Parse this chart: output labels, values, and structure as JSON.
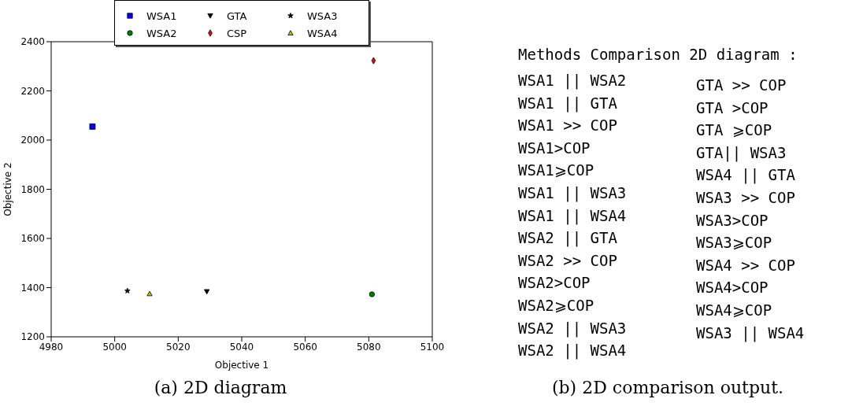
{
  "chart_data": [
    {
      "type": "scatter",
      "xlabel": "Objective 1",
      "ylabel": "Objective 2",
      "xlim": [
        4980,
        5100
      ],
      "xticks": [
        4980,
        5000,
        5020,
        5040,
        5060,
        5080,
        5100
      ],
      "ylim": [
        1200,
        2400
      ],
      "yticks": [
        1200,
        1400,
        1600,
        1800,
        2000,
        2200,
        2400
      ],
      "legend": "top",
      "series": [
        {
          "name": "WSA1",
          "color": "#0000ff",
          "marker": "square",
          "x": [
            4993
          ],
          "values": [
            2055
          ]
        },
        {
          "name": "WSA2",
          "color": "#008000",
          "marker": "circle",
          "x": [
            5081
          ],
          "values": [
            1373
          ]
        },
        {
          "name": "GTA",
          "color": "#000000",
          "marker": "triangle-down",
          "x": [
            5029
          ],
          "values": [
            1384
          ]
        },
        {
          "name": "CSP",
          "color": "#ff0000",
          "marker": "diamond",
          "x": [
            5081.5
          ],
          "values": [
            2323
          ]
        },
        {
          "name": "WSA3",
          "color": "#000000",
          "marker": "star",
          "x": [
            5004
          ],
          "values": [
            1387
          ]
        },
        {
          "name": "WSA4",
          "color": "#bfbf00",
          "marker": "triangle",
          "x": [
            5011
          ],
          "values": [
            1375
          ]
        }
      ],
      "annotations": [
        "(a) 2D diagram"
      ]
    },
    {
      "type": "other",
      "title": "Methods Comparison 2D diagram :",
      "annotations": [
        "WSA1 || WSA2",
        "WSA1 || GTA",
        "WSA1 >> COP",
        "WSA1>COP",
        "WSA1⩾COP",
        "WSA1 || WSA3",
        "WSA1 || WSA4",
        "WSA2 || GTA",
        "WSA2 >> COP",
        "WSA2>COP",
        "WSA2⩾COP",
        "WSA2 || WSA3",
        "WSA2 || WSA4",
        "GTA >> COP",
        "GTA >COP",
        "GTA ⩾COP",
        "GTA|| WSA3",
        "WSA4 || GTA",
        "WSA3 >> COP",
        "WSA3>COP",
        "WSA3⩾COP",
        "WSA4 >> COP",
        "WSA4>COP",
        "WSA4⩾COP",
        "WSA3 || WSA4",
        "(b) 2D comparison output."
      ]
    }
  ]
}
